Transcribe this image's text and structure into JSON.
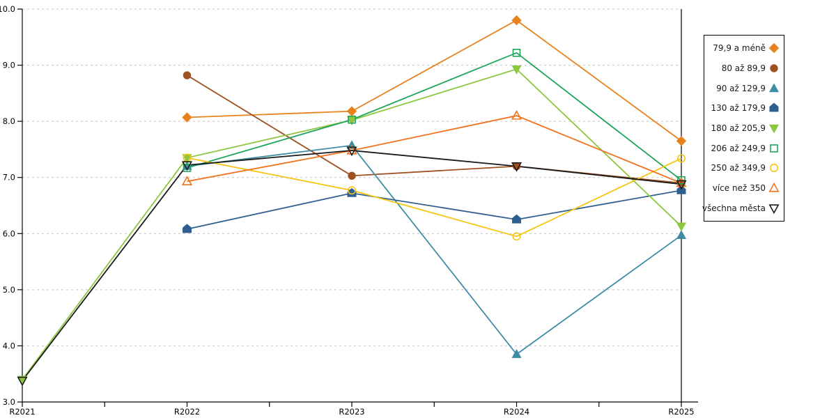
{
  "chart_data": {
    "type": "line",
    "title": "",
    "xlabel": "",
    "ylabel": "",
    "x_labels": [
      "R2021",
      "R2022",
      "R2023",
      "R2024",
      "R2025"
    ],
    "y_tick_labels": [
      "3.0",
      "4.0",
      "5.0",
      "6.0",
      "7.0",
      "8.0",
      "9.0",
      "10.0"
    ],
    "ylim": [
      3.0,
      10.0
    ],
    "ytick_step": 1.0,
    "grid": "horizontal-dashed",
    "legend_position": "right",
    "axis_color": "#000000",
    "grid_color": "#c3c3c3",
    "series": [
      {
        "name": "79,9 a méně",
        "color": "#e8821e",
        "marker": "diamond",
        "filled": true,
        "values": [
          null,
          8.07,
          8.18,
          9.8,
          7.65
        ]
      },
      {
        "name": "80 až 89,9",
        "color": "#9e5021",
        "marker": "circle",
        "filled": true,
        "values": [
          null,
          8.82,
          7.03,
          7.2,
          6.9
        ]
      },
      {
        "name": "90 až 129,9",
        "color": "#3f8ca5",
        "marker": "triangle-up",
        "filled": true,
        "values": [
          null,
          7.2,
          7.57,
          3.85,
          5.97
        ]
      },
      {
        "name": "130 až 179,9",
        "color": "#2f5f91",
        "marker": "pentagon",
        "filled": true,
        "values": [
          null,
          6.08,
          6.72,
          6.25,
          6.77
        ]
      },
      {
        "name": "180 až 205,9",
        "color": "#8dc63f",
        "marker": "triangle-down",
        "filled": true,
        "values": [
          3.4,
          7.35,
          8.02,
          8.93,
          6.13
        ]
      },
      {
        "name": "206 až 249,9",
        "color": "#1fa45c",
        "marker": "square",
        "filled": false,
        "values": [
          null,
          7.17,
          8.03,
          9.22,
          6.95
        ]
      },
      {
        "name": "250 až 349,9",
        "color": "#f6c513",
        "marker": "circle",
        "filled": false,
        "values": [
          null,
          7.35,
          6.77,
          5.95,
          7.34
        ]
      },
      {
        "name": "více než 350",
        "color": "#f2711c",
        "marker": "triangle-up",
        "filled": false,
        "values": [
          null,
          6.93,
          7.48,
          8.1,
          6.9
        ]
      },
      {
        "name": "všechna města",
        "color": "#1a1a1a",
        "marker": "triangle-down",
        "filled": false,
        "values": [
          3.38,
          7.22,
          7.48,
          7.2,
          6.88
        ]
      }
    ]
  }
}
